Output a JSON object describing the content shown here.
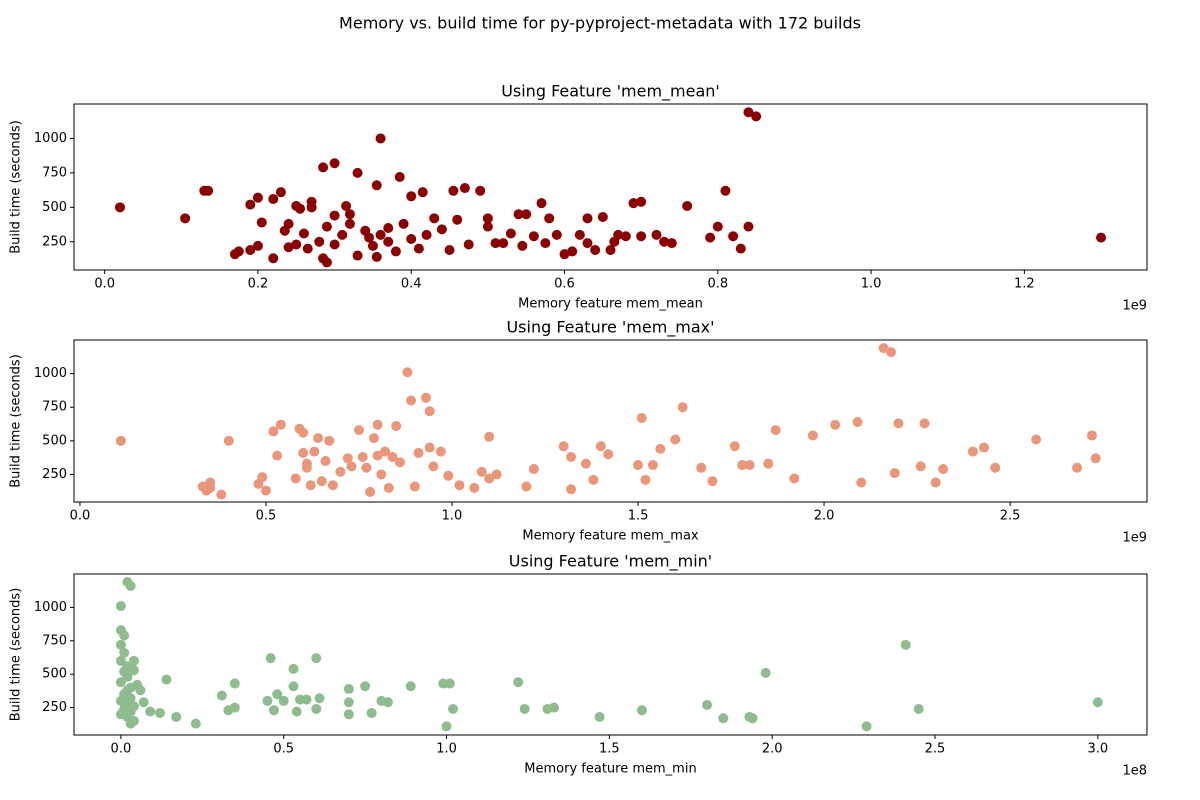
{
  "figure_title": "Memory vs. build time for py-pyproject-metadata with 172 builds",
  "chart_data": [
    {
      "type": "scatter",
      "title": "Using Feature 'mem_mean'",
      "xlabel": "Memory feature mem_mean",
      "ylabel": "Build time (seconds)",
      "x_offset_label": "1e9",
      "color": "#8b0000",
      "x": [
        0.02,
        0.105,
        0.13,
        0.135,
        0.17,
        0.175,
        0.19,
        0.19,
        0.2,
        0.2,
        0.205,
        0.22,
        0.22,
        0.23,
        0.235,
        0.24,
        0.24,
        0.25,
        0.25,
        0.255,
        0.26,
        0.265,
        0.27,
        0.27,
        0.28,
        0.285,
        0.285,
        0.29,
        0.29,
        0.3,
        0.3,
        0.3,
        0.31,
        0.315,
        0.32,
        0.32,
        0.33,
        0.33,
        0.34,
        0.345,
        0.35,
        0.355,
        0.355,
        0.36,
        0.36,
        0.37,
        0.37,
        0.38,
        0.385,
        0.39,
        0.4,
        0.4,
        0.41,
        0.415,
        0.42,
        0.43,
        0.44,
        0.45,
        0.455,
        0.46,
        0.47,
        0.475,
        0.49,
        0.5,
        0.5,
        0.51,
        0.52,
        0.53,
        0.54,
        0.545,
        0.55,
        0.56,
        0.57,
        0.575,
        0.58,
        0.59,
        0.6,
        0.61,
        0.62,
        0.63,
        0.63,
        0.64,
        0.65,
        0.66,
        0.665,
        0.67,
        0.68,
        0.69,
        0.7,
        0.7,
        0.72,
        0.73,
        0.74,
        0.76,
        0.79,
        0.8,
        0.81,
        0.82,
        0.83,
        0.84,
        0.84,
        0.85,
        1.3
      ],
      "values": [
        500,
        420,
        620,
        620,
        160,
        180,
        190,
        520,
        220,
        570,
        390,
        130,
        560,
        610,
        330,
        380,
        210,
        230,
        510,
        490,
        310,
        200,
        540,
        500,
        250,
        790,
        130,
        100,
        360,
        230,
        440,
        820,
        300,
        510,
        380,
        450,
        150,
        750,
        330,
        280,
        220,
        660,
        140,
        1000,
        300,
        350,
        250,
        180,
        720,
        380,
        270,
        580,
        200,
        610,
        300,
        420,
        340,
        190,
        620,
        410,
        640,
        230,
        620,
        360,
        420,
        240,
        240,
        310,
        450,
        220,
        450,
        290,
        530,
        240,
        420,
        300,
        160,
        180,
        300,
        420,
        240,
        190,
        430,
        190,
        250,
        300,
        290,
        530,
        540,
        290,
        300,
        250,
        240,
        510,
        280,
        360,
        620,
        290,
        200,
        360,
        1190,
        1160,
        280
      ],
      "xlim": [
        -0.04,
        1.36
      ],
      "ylim": [
        45,
        1250
      ],
      "xticks": [
        {
          "value": 0,
          "label": "0.0"
        },
        {
          "value": 0.2,
          "label": "0.2"
        },
        {
          "value": 0.4,
          "label": "0.4"
        },
        {
          "value": 0.6,
          "label": "0.6"
        },
        {
          "value": 0.8,
          "label": "0.8"
        },
        {
          "value": 1.0,
          "label": "1.0"
        },
        {
          "value": 1.2,
          "label": "1.2"
        }
      ],
      "yticks": [
        250,
        500,
        750,
        1000
      ]
    },
    {
      "type": "scatter",
      "title": "Using Feature 'mem_max'",
      "xlabel": "Memory feature mem_max",
      "ylabel": "Build time (seconds)",
      "x_offset_label": "1e9",
      "color": "#e9967a",
      "x": [
        0.11,
        0.33,
        0.34,
        0.35,
        0.35,
        0.38,
        0.4,
        0.48,
        0.49,
        0.5,
        0.52,
        0.53,
        0.54,
        0.58,
        0.59,
        0.6,
        0.6,
        0.61,
        0.61,
        0.62,
        0.63,
        0.64,
        0.65,
        0.66,
        0.67,
        0.68,
        0.7,
        0.72,
        0.73,
        0.75,
        0.76,
        0.77,
        0.78,
        0.79,
        0.8,
        0.8,
        0.81,
        0.82,
        0.83,
        0.84,
        0.85,
        0.86,
        0.88,
        0.89,
        0.9,
        0.91,
        0.93,
        0.94,
        0.94,
        0.95,
        0.97,
        0.99,
        1.02,
        1.06,
        1.08,
        1.1,
        1.1,
        1.12,
        1.2,
        1.22,
        1.3,
        1.32,
        1.32,
        1.36,
        1.38,
        1.4,
        1.42,
        1.5,
        1.51,
        1.52,
        1.54,
        1.56,
        1.6,
        1.62,
        1.67,
        1.7,
        1.76,
        1.78,
        1.8,
        1.85,
        1.87,
        1.92,
        1.97,
        2.03,
        2.09,
        2.1,
        2.16,
        2.18,
        2.19,
        2.2,
        2.27,
        2.26,
        2.3,
        2.32,
        2.4,
        2.43,
        2.46,
        2.57,
        2.68,
        2.72,
        2.73
      ],
      "values": [
        500,
        160,
        130,
        190,
        150,
        100,
        500,
        180,
        230,
        130,
        570,
        390,
        620,
        220,
        590,
        560,
        410,
        330,
        300,
        170,
        420,
        520,
        200,
        350,
        500,
        170,
        270,
        370,
        310,
        580,
        380,
        300,
        120,
        520,
        620,
        390,
        250,
        420,
        150,
        380,
        610,
        340,
        1010,
        800,
        160,
        410,
        820,
        720,
        450,
        310,
        420,
        240,
        170,
        150,
        270,
        530,
        220,
        250,
        160,
        290,
        460,
        380,
        140,
        330,
        210,
        460,
        400,
        320,
        670,
        210,
        320,
        440,
        510,
        750,
        300,
        200,
        460,
        320,
        320,
        330,
        580,
        220,
        540,
        620,
        640,
        190,
        1190,
        1160,
        260,
        630,
        630,
        310,
        190,
        290,
        420,
        450,
        300,
        510,
        300,
        540,
        370
      ],
      "xlim": [
        -0.016,
        2.868
      ],
      "ylim": [
        45,
        1250
      ],
      "xticks": [
        {
          "value": 0,
          "label": "0.0"
        },
        {
          "value": 0.5,
          "label": "0.5"
        },
        {
          "value": 1.0,
          "label": "1.0"
        },
        {
          "value": 1.5,
          "label": "1.5"
        },
        {
          "value": 2.0,
          "label": "2.0"
        },
        {
          "value": 2.5,
          "label": "2.5"
        }
      ],
      "yticks": [
        250,
        500,
        750,
        1000
      ]
    },
    {
      "type": "scatter",
      "title": "Using Feature 'mem_min'",
      "xlabel": "Memory feature mem_min",
      "ylabel": "Build time (seconds)",
      "x_offset_label": "1e8",
      "color": "#8fbc8f",
      "x": [
        0.0,
        0.0,
        0.01,
        0.0,
        0.01,
        0.0,
        0.02,
        0.01,
        0.02,
        0.0,
        0.03,
        0.02,
        0.01,
        0.03,
        0.0,
        0.02,
        0.04,
        0.01,
        0.03,
        0.0,
        0.02,
        0.04,
        0.03,
        0.02,
        0.03,
        0.04,
        0.04,
        0.05,
        0.06,
        0.07,
        0.09,
        0.12,
        0.14,
        0.17,
        0.23,
        0.31,
        0.33,
        0.35,
        0.35,
        0.45,
        0.46,
        0.47,
        0.48,
        0.5,
        0.53,
        0.53,
        0.54,
        0.55,
        0.57,
        0.6,
        0.6,
        0.61,
        0.7,
        0.7,
        0.7,
        0.75,
        0.77,
        0.8,
        0.82,
        0.89,
        0.99,
        1.0,
        1.01,
        1.02,
        1.22,
        1.24,
        1.31,
        1.33,
        1.47,
        1.6,
        1.8,
        1.85,
        1.93,
        1.94,
        1.98,
        2.29,
        2.41,
        2.45,
        3.0
      ],
      "values": [
        1010,
        830,
        790,
        720,
        660,
        600,
        560,
        520,
        480,
        440,
        400,
        380,
        350,
        320,
        300,
        280,
        260,
        240,
        220,
        200,
        180,
        150,
        130,
        1190,
        1160,
        600,
        530,
        420,
        380,
        290,
        220,
        210,
        460,
        180,
        130,
        340,
        230,
        430,
        250,
        300,
        620,
        230,
        350,
        300,
        540,
        410,
        220,
        310,
        310,
        620,
        240,
        320,
        390,
        200,
        290,
        410,
        210,
        300,
        290,
        410,
        430,
        110,
        430,
        240,
        440,
        240,
        240,
        250,
        180,
        230,
        270,
        170,
        180,
        170,
        510,
        110,
        720,
        240,
        290
      ],
      "xlim": [
        -0.144,
        3.151
      ],
      "ylim": [
        45,
        1250
      ],
      "xticks": [
        {
          "value": 0,
          "label": "0.0"
        },
        {
          "value": 0.5,
          "label": "0.5"
        },
        {
          "value": 1.0,
          "label": "1.0"
        },
        {
          "value": 1.5,
          "label": "1.5"
        },
        {
          "value": 2.0,
          "label": "2.0"
        },
        {
          "value": 2.5,
          "label": "2.5"
        },
        {
          "value": 3.0,
          "label": "3.0"
        }
      ],
      "yticks": [
        250,
        500,
        750,
        1000
      ]
    }
  ]
}
